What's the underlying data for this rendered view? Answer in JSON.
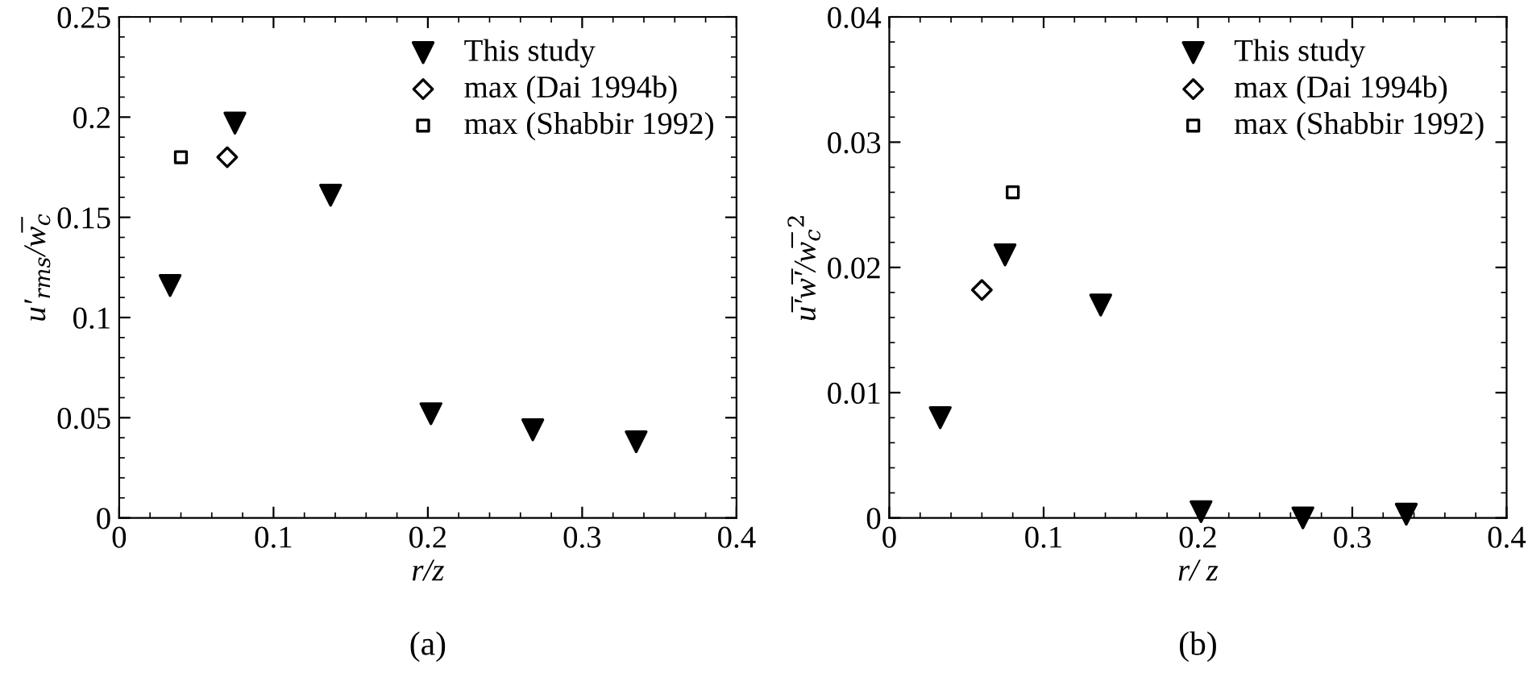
{
  "chart_data": [
    {
      "type": "scatter",
      "title": "(a)",
      "xlabel": "r/z",
      "ylabel": "u′$_{rms}$/w̅$_{c}$",
      "xlim": [
        0,
        0.4
      ],
      "xticks": [
        0,
        0.1,
        0.2,
        0.3,
        0.4
      ],
      "ylim": [
        0,
        0.25
      ],
      "yticks": [
        0,
        0.05,
        0.1,
        0.15,
        0.2,
        0.25
      ],
      "grid": false,
      "legend": "top right",
      "series": [
        {
          "name": "This study",
          "color": "#000000",
          "marker": "triangle",
          "x": [
            0.033,
            0.075,
            0.137,
            0.202,
            0.268,
            0.335
          ],
          "values": [
            0.116,
            0.197,
            0.161,
            0.052,
            0.044,
            0.038
          ]
        },
        {
          "name": "max (Dai 1994b)",
          "color": "#000000",
          "marker": "diamond",
          "x": [
            0.07
          ],
          "values": [
            0.18
          ]
        },
        {
          "name": "max (Shabbir 1992)",
          "color": "#000000",
          "marker": "square",
          "x": [
            0.04
          ],
          "values": [
            0.18
          ]
        }
      ]
    },
    {
      "type": "scatter",
      "title": "(b)",
      "xlabel": "r/ z",
      "ylabel": "u̅′w̅′/w̅$_{c}$$^{2}$",
      "xlim": [
        0,
        0.4
      ],
      "xticks": [
        0,
        0.1,
        0.2,
        0.3,
        0.4
      ],
      "ylim": [
        0,
        0.04
      ],
      "yticks": [
        0,
        0.01,
        0.02,
        0.03,
        0.04
      ],
      "grid": false,
      "legend": "top right",
      "series": [
        {
          "name": "This study",
          "color": "#000000",
          "marker": "triangle",
          "x": [
            0.033,
            0.075,
            0.137,
            0.202,
            0.268,
            0.335
          ],
          "values": [
            0.008,
            0.021,
            0.017,
            0.0005,
            0.0,
            0.0003
          ]
        },
        {
          "name": "max (Dai 1994b)",
          "color": "#000000",
          "marker": "diamond",
          "x": [
            0.06
          ],
          "values": [
            0.0182
          ]
        },
        {
          "name": "max (Shabbir 1992)",
          "color": "#000000",
          "marker": "square",
          "x": [
            0.08
          ],
          "values": [
            0.026
          ]
        }
      ]
    }
  ]
}
